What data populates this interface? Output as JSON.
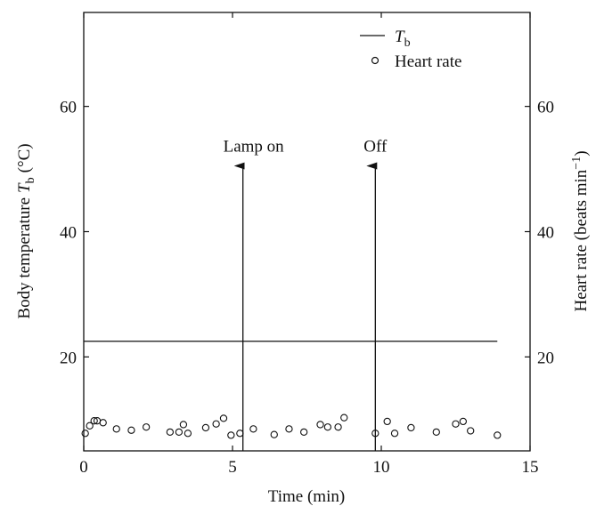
{
  "chart_data": {
    "type": "line+scatter",
    "x_label": "Time (min)",
    "y_left_label": "Body temperature",
    "y_left_label_symbol": "T",
    "y_left_label_sub": "b",
    "y_left_label_unit": "(°C)",
    "y_right_label": "Heart rate (beats min",
    "y_right_label_sup": "−1",
    "y_right_label_close": ")",
    "xlim": [
      0,
      15
    ],
    "ylim_left": [
      5,
      75
    ],
    "ylim_right": [
      5,
      75
    ],
    "x_ticks": [
      "0",
      "5",
      "10",
      "15"
    ],
    "y_ticks": [
      "20",
      "40",
      "60"
    ],
    "x_tick_values": [
      0,
      5,
      10,
      15
    ],
    "y_tick_values": [
      20,
      40,
      60
    ],
    "legend": {
      "placement": "top-right",
      "tb_symbol": "T",
      "tb_sub": "b",
      "heart_rate": "Heart rate"
    },
    "series": [
      {
        "name": "Tb",
        "type": "line",
        "axis": "left",
        "x": [
          0.0,
          13.9
        ],
        "y": [
          22.5,
          22.5
        ]
      },
      {
        "name": "Heart rate",
        "type": "scatter",
        "axis": "right",
        "x": [
          0.05,
          0.2,
          0.35,
          0.45,
          0.65,
          1.1,
          1.6,
          2.1,
          2.9,
          3.2,
          3.35,
          3.5,
          4.1,
          4.45,
          4.7,
          4.95,
          5.25,
          5.7,
          6.4,
          6.9,
          7.4,
          7.95,
          8.2,
          8.55,
          8.75,
          9.8,
          10.2,
          10.45,
          11.0,
          11.85,
          12.5,
          12.75,
          13.0,
          13.9
        ],
        "y": [
          7.8,
          9.0,
          9.8,
          9.8,
          9.5,
          8.5,
          8.3,
          8.8,
          8.0,
          8.0,
          9.2,
          7.8,
          8.7,
          9.3,
          10.2,
          7.5,
          7.8,
          8.5,
          7.6,
          8.5,
          8.0,
          9.2,
          8.8,
          8.8,
          10.3,
          7.8,
          9.7,
          7.8,
          8.7,
          8.0,
          9.3,
          9.7,
          8.2,
          7.5
        ]
      }
    ],
    "annotations": [
      {
        "label": "Lamp on",
        "x": 5.35,
        "y_from": 5,
        "y_to": 50.5
      },
      {
        "label": "Off",
        "x": 9.8,
        "y_from": 5,
        "y_to": 50.5
      }
    ]
  }
}
